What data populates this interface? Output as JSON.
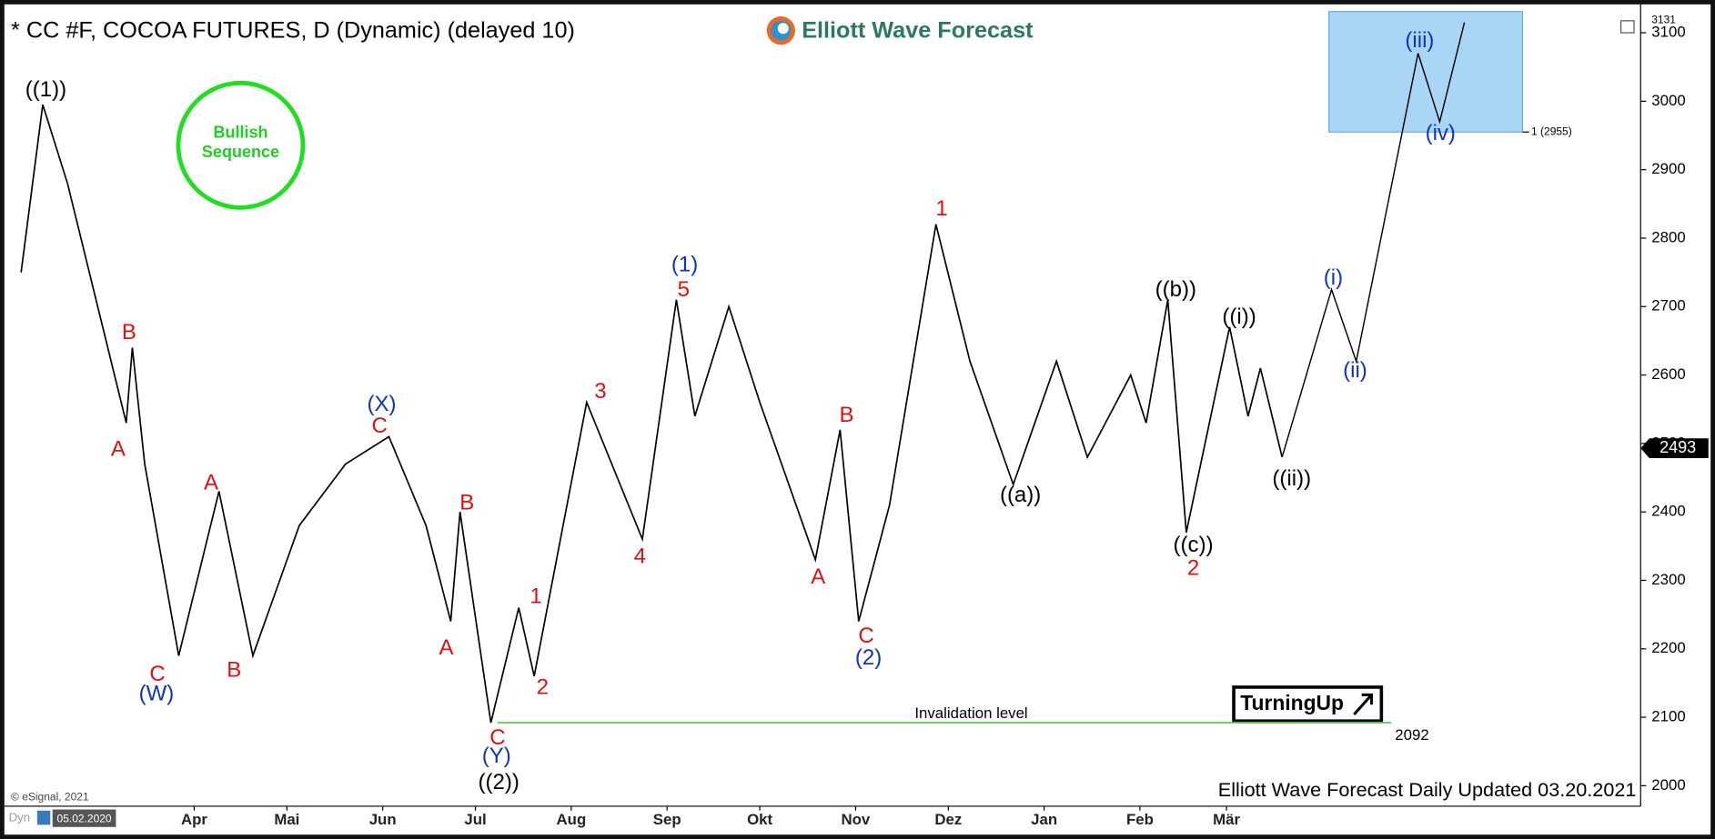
{
  "chart_data": {
    "type": "line",
    "title": "* CC #F, COCOA FUTURES, D (Dynamic) (delayed 10)",
    "logo": "Elliott Wave Forecast",
    "badge": [
      "Bullish",
      "Sequence"
    ],
    "brand": "TurningUp",
    "copyright": "© eSignal, 2021",
    "footer": "Elliott Wave Forecast Daily Updated 03.20.2021",
    "x_start_label": "05.02.2020",
    "x_prefix": "Dyn",
    "color": "#000000",
    "x": [
      "2020-02-05",
      "2020-02-12",
      "2020-02-20",
      "2020-03-10",
      "2020-03-12",
      "2020-03-16",
      "2020-03-27",
      "2020-04-09",
      "2020-04-20",
      "2020-05-05",
      "2020-05-20",
      "2020-06-03",
      "2020-06-15",
      "2020-06-23",
      "2020-06-26",
      "2020-07-06",
      "2020-07-15",
      "2020-07-20",
      "2020-08-06",
      "2020-08-24",
      "2020-09-04",
      "2020-09-10",
      "2020-09-21",
      "2020-10-01",
      "2020-10-19",
      "2020-10-27",
      "2020-11-02",
      "2020-11-12",
      "2020-11-27",
      "2020-12-08",
      "2020-12-22",
      "2021-01-05",
      "2021-01-15",
      "2021-01-29",
      "2021-02-03",
      "2021-02-10",
      "2021-02-16",
      "2021-03-02",
      "2021-03-08",
      "2021-03-12",
      "2021-03-19"
    ],
    "values": [
      2750,
      2995,
      2880,
      2530,
      2640,
      2470,
      2190,
      2430,
      2190,
      2380,
      2470,
      2510,
      2380,
      2240,
      2400,
      2092,
      2260,
      2160,
      2560,
      2360,
      2710,
      2540,
      2700,
      2560,
      2330,
      2520,
      2240,
      2410,
      2820,
      2620,
      2440,
      2620,
      2480,
      2600,
      2530,
      2710,
      2370,
      2670,
      2540,
      2610,
      2480
    ],
    "projection": {
      "color": "#000000",
      "x": [
        "2021-03-19",
        "2021-04-04",
        "2021-04-12",
        "2021-05-02",
        "2021-05-09",
        "2021-05-17"
      ],
      "values": [
        2480,
        2725,
        2620,
        3070,
        2970,
        3115
      ]
    },
    "target_zone": {
      "low": 2955,
      "label": "1 (2955)",
      "color": "#a9d5f7"
    },
    "invalidation": {
      "label": "Invalidation level",
      "value": 2092,
      "color": "#66cc66"
    },
    "last_price": 2493,
    "xlim": [
      "2020-02-01",
      "2021-07-13"
    ],
    "xticks": [
      {
        "value": "2020-04-01",
        "label": "Apr"
      },
      {
        "value": "2020-05-01",
        "label": "Mai"
      },
      {
        "value": "2020-06-01",
        "label": "Jun"
      },
      {
        "value": "2020-07-01",
        "label": "Jul"
      },
      {
        "value": "2020-08-01",
        "label": "Aug"
      },
      {
        "value": "2020-09-01",
        "label": "Sep"
      },
      {
        "value": "2020-10-01",
        "label": "Okt"
      },
      {
        "value": "2020-11-01",
        "label": "Nov"
      },
      {
        "value": "2020-12-01",
        "label": "Dez"
      },
      {
        "value": "2021-01-01",
        "label": "Jan"
      },
      {
        "value": "2021-02-01",
        "label": "Feb"
      },
      {
        "value": "2021-03-01",
        "label": "Mär"
      }
    ],
    "ylim": [
      1970,
      3131
    ],
    "yticks": [
      2000,
      2100,
      2200,
      2300,
      2400,
      2500,
      2600,
      2700,
      2800,
      2900,
      3000,
      3100
    ],
    "wave_labels": [
      {
        "text": "((1))",
        "color": "#000000"
      },
      {
        "text": "B",
        "color": "#dd1111"
      },
      {
        "text": "A",
        "color": "#dd1111"
      },
      {
        "text": "C",
        "color": "#dd1111"
      },
      {
        "text": "(W)",
        "color": "#1133bb"
      },
      {
        "text": "A",
        "color": "#dd1111"
      },
      {
        "text": "B",
        "color": "#dd1111"
      },
      {
        "text": "(X)",
        "color": "#1133bb"
      },
      {
        "text": "C",
        "color": "#dd1111"
      },
      {
        "text": "A",
        "color": "#dd1111"
      },
      {
        "text": "B",
        "color": "#dd1111"
      },
      {
        "text": "C",
        "color": "#dd1111"
      },
      {
        "text": "(Y)",
        "color": "#1133bb"
      },
      {
        "text": "((2))",
        "color": "#000000"
      },
      {
        "text": "1",
        "color": "#dd1111"
      },
      {
        "text": "2",
        "color": "#dd1111"
      },
      {
        "text": "3",
        "color": "#dd1111"
      },
      {
        "text": "4",
        "color": "#dd1111"
      },
      {
        "text": "(1)",
        "color": "#1133bb"
      },
      {
        "text": "5",
        "color": "#dd1111"
      },
      {
        "text": "A",
        "color": "#dd1111"
      },
      {
        "text": "B",
        "color": "#dd1111"
      },
      {
        "text": "C",
        "color": "#dd1111"
      },
      {
        "text": "(2)",
        "color": "#1133bb"
      },
      {
        "text": "1",
        "color": "#dd1111"
      },
      {
        "text": "((a))",
        "color": "#000000"
      },
      {
        "text": "((b))",
        "color": "#000000"
      },
      {
        "text": "((c))",
        "color": "#000000"
      },
      {
        "text": "2",
        "color": "#dd1111"
      },
      {
        "text": "((i))",
        "color": "#000000"
      },
      {
        "text": "((ii))",
        "color": "#000000"
      },
      {
        "text": "(i)",
        "color": "#1133bb"
      },
      {
        "text": "(ii)",
        "color": "#1133bb"
      },
      {
        "text": "(iii)",
        "color": "#1133bb"
      },
      {
        "text": "(iv)",
        "color": "#1133bb"
      }
    ]
  }
}
